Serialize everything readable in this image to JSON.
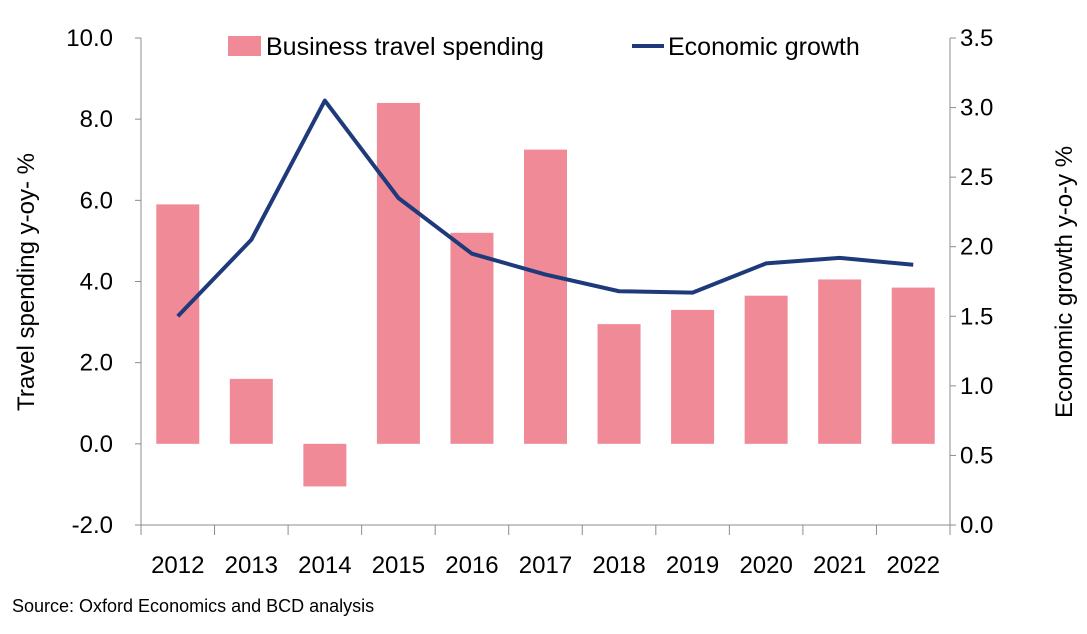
{
  "chart_data": {
    "type": "bar",
    "categories": [
      "2012",
      "2013",
      "2014",
      "2015",
      "2016",
      "2017",
      "2018",
      "2019",
      "2020",
      "2021",
      "2022"
    ],
    "series": [
      {
        "name": "Business travel spending",
        "type": "bar",
        "axis": "left",
        "color": "#f08a97",
        "values": [
          5.9,
          1.6,
          -1.05,
          8.4,
          5.2,
          7.25,
          2.95,
          3.3,
          3.65,
          4.05,
          3.85
        ]
      },
      {
        "name": "Economic growth",
        "type": "line",
        "axis": "right",
        "color": "#1f3a7a",
        "values": [
          1.5,
          2.05,
          3.05,
          2.35,
          1.95,
          1.8,
          1.68,
          1.67,
          1.88,
          1.92,
          1.87
        ]
      }
    ],
    "ylabel": "Travel spending y-oy- %",
    "y2label": "Economic growth y-o-y %",
    "ylim": [
      -2.0,
      10.0
    ],
    "y2lim": [
      0.0,
      3.5
    ],
    "yticks": [
      "-2.0",
      "0.0",
      "2.0",
      "4.0",
      "6.0",
      "8.0",
      "10.0"
    ],
    "y2ticks": [
      "0.0",
      "0.5",
      "1.0",
      "1.5",
      "2.0",
      "2.5",
      "3.0",
      "3.5"
    ],
    "grid": false,
    "legend_position": "top"
  },
  "source": "Source: Oxford Economics and BCD analysis"
}
